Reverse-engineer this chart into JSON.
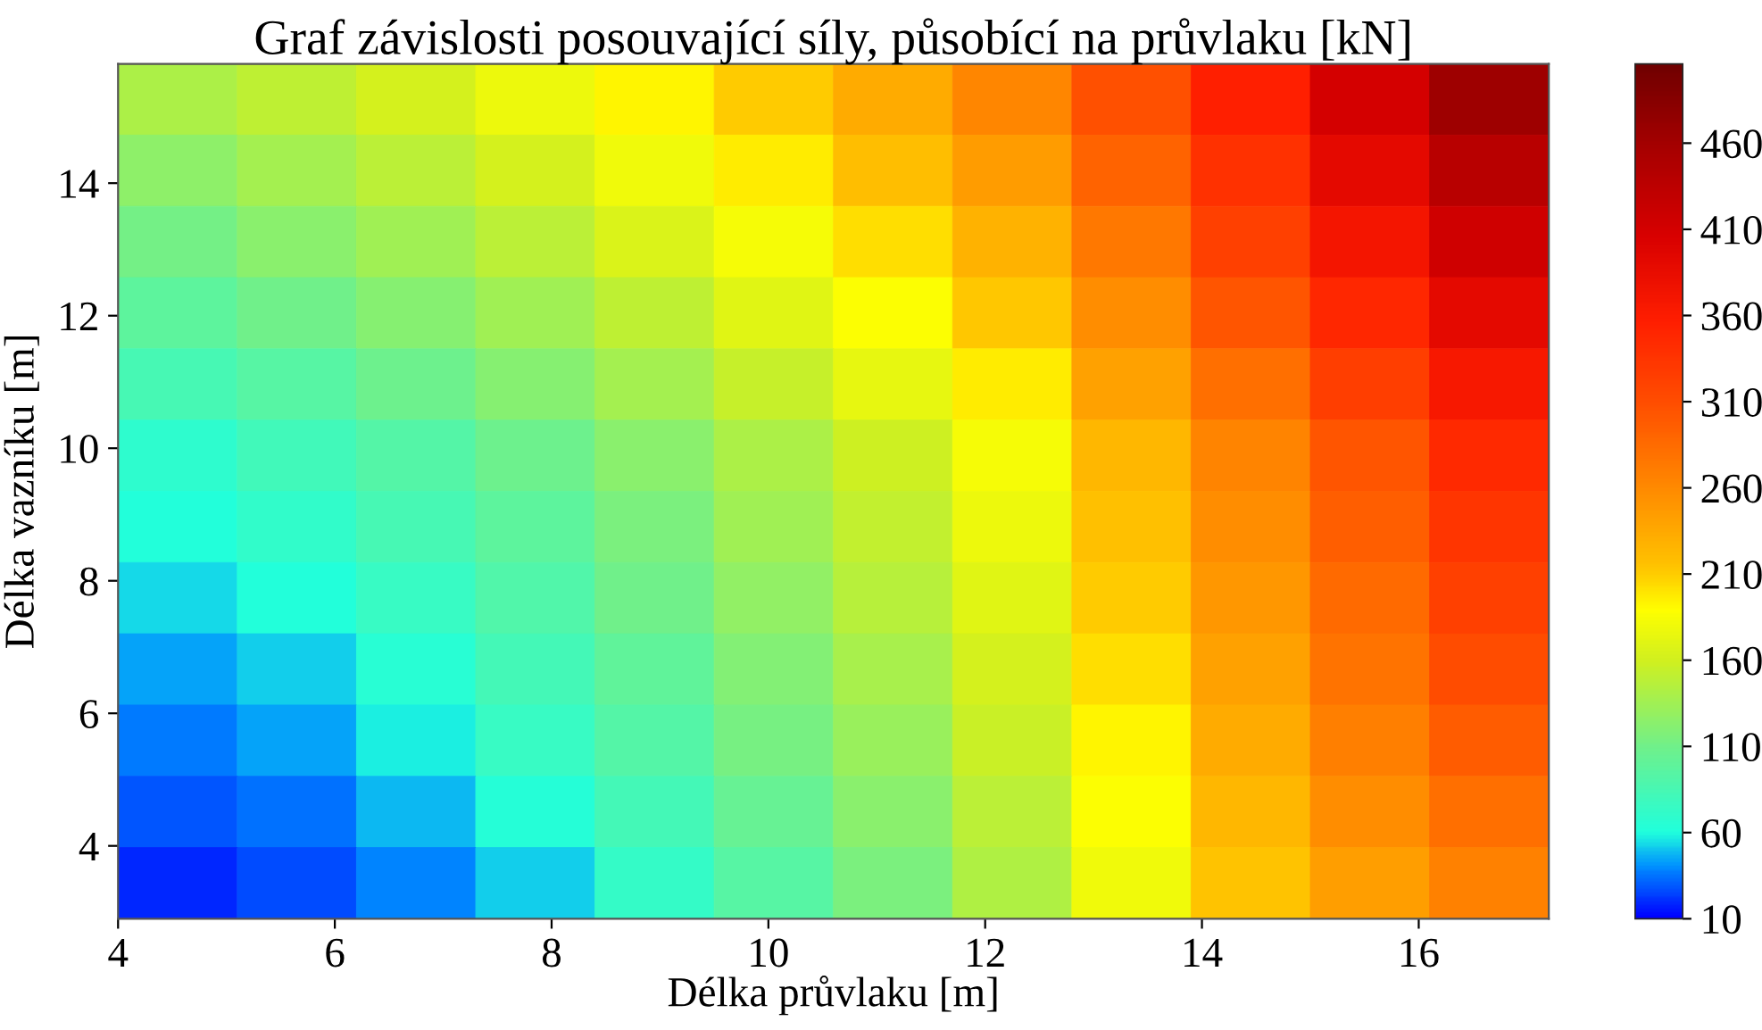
{
  "chart_data": {
    "type": "heatmap",
    "title": "Graf závislosti posouvající síly, působící na průvlaku [kN]",
    "xlabel": "Délka průvlaku [m]",
    "ylabel": "Délka vazníku [m]",
    "x": [
      4.55,
      5.65,
      6.75,
      7.85,
      8.95,
      10.05,
      11.15,
      12.25,
      13.35,
      14.45,
      15.55,
      16.65
    ],
    "y": [
      15.26,
      14.19,
      13.11,
      12.04,
      10.96,
      9.89,
      8.81,
      7.74,
      6.66,
      5.59,
      4.51,
      3.44
    ],
    "cells": [
      [
        140,
        151,
        163,
        177,
        193,
        210,
        234,
        263,
        307,
        355,
        410,
        465
      ],
      [
        126,
        137,
        149,
        163,
        179,
        197,
        218,
        245,
        291,
        339,
        391,
        440
      ],
      [
        112,
        123,
        135,
        149,
        165,
        183,
        202,
        228,
        274,
        322,
        372,
        415
      ],
      [
        98,
        109,
        121,
        135,
        151,
        169,
        187,
        213,
        257,
        303,
        349,
        391
      ],
      [
        84,
        95,
        107,
        121,
        137,
        154,
        173,
        197,
        241,
        283,
        325,
        368
      ],
      [
        70,
        81,
        93,
        107,
        123,
        140,
        159,
        183,
        225,
        265,
        303,
        346
      ],
      [
        61,
        71,
        84,
        99,
        116,
        134,
        153,
        177,
        217,
        257,
        295,
        334
      ],
      [
        53,
        62,
        75,
        91,
        109,
        127,
        146,
        170,
        210,
        249,
        287,
        323
      ],
      [
        44,
        52,
        66,
        83,
        101,
        120,
        139,
        163,
        202,
        241,
        279,
        311
      ],
      [
        36,
        43,
        57,
        74,
        93,
        113,
        132,
        156,
        194,
        233,
        269,
        298
      ],
      [
        28,
        35,
        48,
        63,
        83,
        104,
        124,
        149,
        187,
        224,
        257,
        282
      ],
      [
        19,
        26,
        38,
        52,
        73,
        95,
        116,
        142,
        180,
        215,
        244,
        266
      ]
    ],
    "xlim": [
      4,
      17.2
    ],
    "ylim": [
      2.9,
      15.8
    ],
    "xticks": [
      4,
      6,
      8,
      10,
      12,
      14,
      16
    ],
    "yticks": [
      4,
      6,
      8,
      10,
      12,
      14
    ],
    "clim": [
      10,
      506
    ],
    "cticks": [
      10,
      60,
      110,
      160,
      210,
      260,
      310,
      360,
      410,
      460
    ]
  }
}
